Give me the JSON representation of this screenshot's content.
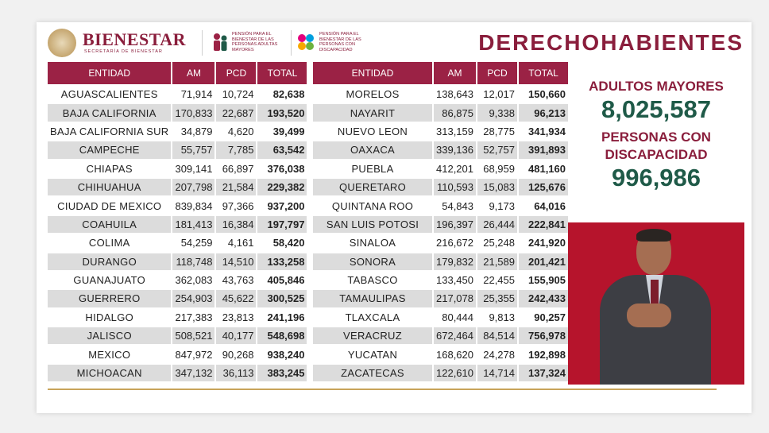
{
  "header": {
    "brand": "BIENESTAR",
    "brand_sub": "SECRETARÍA DE BIENESTAR",
    "program1": "PENSIÓN PARA EL BIENESTAR DE LAS PERSONAS ADULTAS MAYORES",
    "program2": "PENSIÓN PARA EL BIENESTAR DE LAS PERSONAS CON DISCAPACIDAD",
    "title": "DERECHOHABIENTES"
  },
  "columns": {
    "entidad": "ENTIDAD",
    "am": "AM",
    "pcd": "PCD",
    "total": "TOTAL"
  },
  "left_rows": [
    {
      "entidad": "AGUASCALIENTES",
      "am": "71,914",
      "pcd": "10,724",
      "total": "82,638"
    },
    {
      "entidad": "BAJA CALIFORNIA",
      "am": "170,833",
      "pcd": "22,687",
      "total": "193,520"
    },
    {
      "entidad": "BAJA CALIFORNIA SUR",
      "am": "34,879",
      "pcd": "4,620",
      "total": "39,499"
    },
    {
      "entidad": "CAMPECHE",
      "am": "55,757",
      "pcd": "7,785",
      "total": "63,542"
    },
    {
      "entidad": "CHIAPAS",
      "am": "309,141",
      "pcd": "66,897",
      "total": "376,038"
    },
    {
      "entidad": "CHIHUAHUA",
      "am": "207,798",
      "pcd": "21,584",
      "total": "229,382"
    },
    {
      "entidad": "CIUDAD DE MEXICO",
      "am": "839,834",
      "pcd": "97,366",
      "total": "937,200"
    },
    {
      "entidad": "COAHUILA",
      "am": "181,413",
      "pcd": "16,384",
      "total": "197,797"
    },
    {
      "entidad": "COLIMA",
      "am": "54,259",
      "pcd": "4,161",
      "total": "58,420"
    },
    {
      "entidad": "DURANGO",
      "am": "118,748",
      "pcd": "14,510",
      "total": "133,258"
    },
    {
      "entidad": "GUANAJUATO",
      "am": "362,083",
      "pcd": "43,763",
      "total": "405,846"
    },
    {
      "entidad": "GUERRERO",
      "am": "254,903",
      "pcd": "45,622",
      "total": "300,525"
    },
    {
      "entidad": "HIDALGO",
      "am": "217,383",
      "pcd": "23,813",
      "total": "241,196"
    },
    {
      "entidad": "JALISCO",
      "am": "508,521",
      "pcd": "40,177",
      "total": "548,698"
    },
    {
      "entidad": "MEXICO",
      "am": "847,972",
      "pcd": "90,268",
      "total": "938,240"
    },
    {
      "entidad": "MICHOACAN",
      "am": "347,132",
      "pcd": "36,113",
      "total": "383,245"
    }
  ],
  "right_rows": [
    {
      "entidad": "MORELOS",
      "am": "138,643",
      "pcd": "12,017",
      "total": "150,660"
    },
    {
      "entidad": "NAYARIT",
      "am": "86,875",
      "pcd": "9,338",
      "total": "96,213"
    },
    {
      "entidad": "NUEVO LEON",
      "am": "313,159",
      "pcd": "28,775",
      "total": "341,934"
    },
    {
      "entidad": "OAXACA",
      "am": "339,136",
      "pcd": "52,757",
      "total": "391,893"
    },
    {
      "entidad": "PUEBLA",
      "am": "412,201",
      "pcd": "68,959",
      "total": "481,160"
    },
    {
      "entidad": "QUERETARO",
      "am": "110,593",
      "pcd": "15,083",
      "total": "125,676"
    },
    {
      "entidad": "QUINTANA ROO",
      "am": "54,843",
      "pcd": "9,173",
      "total": "64,016"
    },
    {
      "entidad": "SAN LUIS POTOSI",
      "am": "196,397",
      "pcd": "26,444",
      "total": "222,841"
    },
    {
      "entidad": "SINALOA",
      "am": "216,672",
      "pcd": "25,248",
      "total": "241,920"
    },
    {
      "entidad": "SONORA",
      "am": "179,832",
      "pcd": "21,589",
      "total": "201,421"
    },
    {
      "entidad": "TABASCO",
      "am": "133,450",
      "pcd": "22,455",
      "total": "155,905"
    },
    {
      "entidad": "TAMAULIPAS",
      "am": "217,078",
      "pcd": "25,355",
      "total": "242,433"
    },
    {
      "entidad": "TLAXCALA",
      "am": "80,444",
      "pcd": "9,813",
      "total": "90,257"
    },
    {
      "entidad": "VERACRUZ",
      "am": "672,464",
      "pcd": "84,514",
      "total": "756,978"
    },
    {
      "entidad": "YUCATAN",
      "am": "168,620",
      "pcd": "24,278",
      "total": "192,898"
    },
    {
      "entidad": "ZACATECAS",
      "am": "122,610",
      "pcd": "14,714",
      "total": "137,324"
    }
  ],
  "summary": {
    "am_label": "ADULTOS MAYORES",
    "am_value": "8,025,587",
    "pcd_label": "PERSONAS CON DISCAPACIDAD",
    "pcd_value": "996,986"
  },
  "colors": {
    "header_bg": "#9b2245",
    "brand": "#8a1e3c",
    "value_green": "#1f5a48",
    "interpreter_bg": "#b6142c",
    "row_alt": "#dcdcdc"
  }
}
